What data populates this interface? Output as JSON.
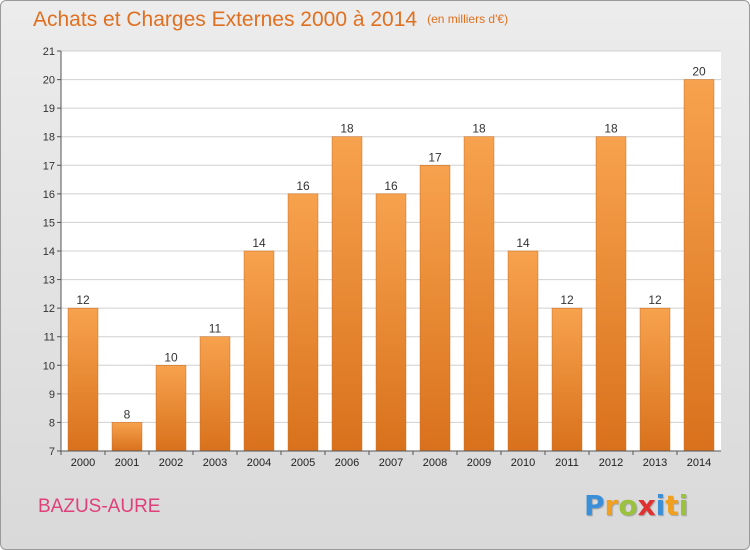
{
  "header": {
    "title": "Achats et Charges Externes 2000 à 2014",
    "unit": "(en milliers d'€)"
  },
  "location": "BAZUS-AURE",
  "brand": {
    "letters": [
      "P",
      "r",
      "o",
      "x",
      "i",
      "t",
      "i"
    ],
    "colors": [
      "#3a8fd8",
      "#f0a020",
      "#9ac23c",
      "#e03030",
      "#3a8fd8",
      "#f0a020",
      "#9ac23c"
    ]
  },
  "chart_data": {
    "type": "bar",
    "title": "Achats et Charges Externes 2000 à 2014",
    "subtitle": "(en milliers d'€)",
    "xlabel": "",
    "ylabel": "",
    "categories": [
      "2000",
      "2001",
      "2002",
      "2003",
      "2004",
      "2005",
      "2006",
      "2007",
      "2008",
      "2009",
      "2010",
      "2011",
      "2012",
      "2013",
      "2014"
    ],
    "values": [
      12,
      8,
      10,
      11,
      14,
      16,
      18,
      16,
      17,
      18,
      14,
      12,
      18,
      12,
      20
    ],
    "ylim": [
      7,
      21
    ],
    "yticks": [
      7,
      8,
      9,
      10,
      11,
      12,
      13,
      14,
      15,
      16,
      17,
      18,
      19,
      20,
      21
    ],
    "grid": true,
    "legend": "none",
    "bar_color_top": "#f7a24e",
    "bar_color_bottom": "#d9711c"
  }
}
